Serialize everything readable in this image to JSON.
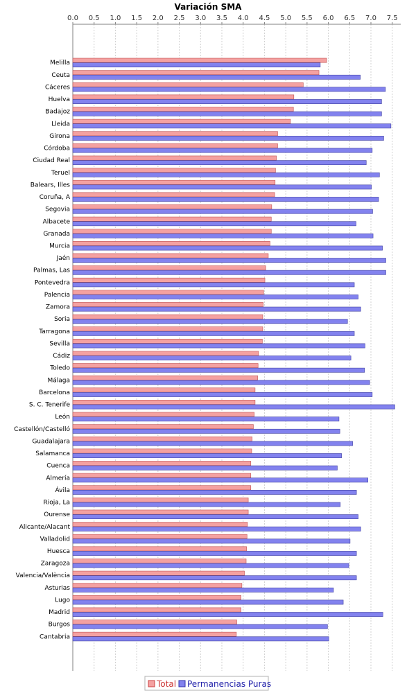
{
  "chart_data": {
    "type": "bar",
    "orientation": "horizontal",
    "title": "Variación SMA",
    "xlabel": "",
    "ylabel": "",
    "xlim": [
      0,
      7.7
    ],
    "xticks": [
      "0.0",
      "0.5",
      "1.0",
      "1.5",
      "2.0",
      "2.5",
      "3.0",
      "3.5",
      "4.0",
      "4.5",
      "5.0",
      "5.5",
      "6.0",
      "6.5",
      "7.0",
      "7.5"
    ],
    "grid": true,
    "legend_position": "bottom-center",
    "categories": [
      "Melilla",
      "Ceuta",
      "Cáceres",
      "Huelva",
      "Badajoz",
      "Lleida",
      "Girona",
      "Córdoba",
      "Ciudad Real",
      "Teruel",
      "Balears, Illes",
      "Coruña, A",
      "Segovia",
      "Albacete",
      "Granada",
      "Murcia",
      "Jaén",
      "Palmas, Las",
      "Pontevedra",
      "Palencia",
      "Zamora",
      "Soria",
      "Tarragona",
      "Sevilla",
      "Cádiz",
      "Toledo",
      "Málaga",
      "Barcelona",
      "S. C. Tenerife",
      "León",
      "Castellón/Castelló",
      "Guadalajara",
      "Salamanca",
      "Cuenca",
      "Almería",
      "Ávila",
      "Rioja, La",
      "Ourense",
      "Alicante/Alacant",
      "Valladolid",
      "Huesca",
      "Zaragoza",
      "Valencia/València",
      "Asturias",
      "Lugo",
      "Madrid",
      "Burgos",
      "Cantabria"
    ],
    "series": [
      {
        "name": "Total",
        "color": "#f4a1a1",
        "values": [
          5.96,
          5.78,
          5.41,
          5.19,
          5.18,
          5.11,
          4.81,
          4.81,
          4.78,
          4.76,
          4.75,
          4.74,
          4.67,
          4.66,
          4.66,
          4.63,
          4.59,
          4.53,
          4.51,
          4.48,
          4.47,
          4.46,
          4.46,
          4.45,
          4.36,
          4.35,
          4.34,
          4.28,
          4.28,
          4.26,
          4.24,
          4.21,
          4.2,
          4.18,
          4.18,
          4.18,
          4.12,
          4.12,
          4.1,
          4.09,
          4.08,
          4.07,
          4.03,
          3.97,
          3.95,
          3.95,
          3.85,
          3.84
        ]
      },
      {
        "name": "Permanencias Puras",
        "color": "#8282ee",
        "values": [
          5.81,
          6.75,
          7.34,
          7.25,
          7.25,
          7.47,
          7.3,
          7.03,
          6.89,
          7.2,
          7.01,
          7.18,
          7.04,
          6.65,
          7.05,
          7.27,
          7.35,
          7.35,
          6.61,
          6.7,
          6.76,
          6.45,
          6.61,
          6.86,
          6.53,
          6.85,
          6.97,
          7.03,
          7.56,
          6.25,
          6.27,
          6.57,
          6.31,
          6.21,
          6.93,
          6.66,
          6.28,
          6.7,
          6.76,
          6.51,
          6.66,
          6.48,
          6.66,
          6.12,
          6.35,
          7.28,
          5.98,
          6.01
        ]
      }
    ]
  }
}
